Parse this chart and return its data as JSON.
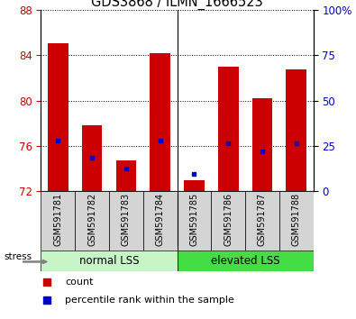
{
  "title": "GDS3868 / ILMN_1666523",
  "samples": [
    "GSM591781",
    "GSM591782",
    "GSM591783",
    "GSM591784",
    "GSM591785",
    "GSM591786",
    "GSM591787",
    "GSM591788"
  ],
  "count_values": [
    85.0,
    77.8,
    74.7,
    84.2,
    73.0,
    83.0,
    80.2,
    82.7
  ],
  "percentile_values": [
    76.5,
    75.0,
    74.0,
    76.5,
    73.5,
    76.2,
    75.5,
    76.2
  ],
  "ylim_left": [
    72,
    88
  ],
  "ylim_right": [
    0,
    100
  ],
  "yticks_left": [
    72,
    76,
    80,
    84,
    88
  ],
  "yticks_right": [
    0,
    25,
    50,
    75,
    100
  ],
  "ytick_labels_right": [
    "0",
    "25",
    "50",
    "75",
    "100%"
  ],
  "group1_label": "normal LSS",
  "group2_label": "elevated LSS",
  "group1_color": "#c8f5c8",
  "group2_color": "#44dd44",
  "group1_indices": [
    0,
    1,
    2,
    3
  ],
  "group2_indices": [
    4,
    5,
    6,
    7
  ],
  "bar_color": "#cc0000",
  "marker_color": "#0000cc",
  "bar_width": 0.6,
  "stress_label": "stress",
  "legend_count": "count",
  "legend_pct": "percentile rank within the sample",
  "left_tick_color": "#cc0000",
  "right_tick_color": "#0000cc",
  "grid_color": "#000000",
  "bg_plot": "#ffffff",
  "bg_label": "#d4d4d4"
}
